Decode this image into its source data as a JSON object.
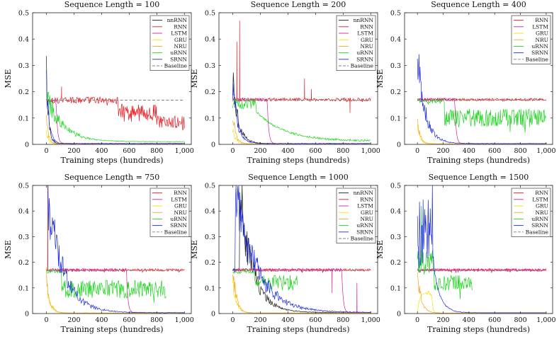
{
  "chart_data": [
    {
      "type": "line",
      "title": "Sequence Length = 100",
      "xlabel": "Training steps (hundreds)",
      "ylabel": "MSE",
      "xlim": [
        -100,
        1050
      ],
      "ylim": [
        0,
        0.5
      ],
      "xticks": [
        0,
        200,
        400,
        600,
        800,
        1000
      ],
      "xtick_labels": [
        "0",
        "200",
        "400",
        "600",
        "800",
        "1,000"
      ],
      "yticks": [
        0,
        0.1,
        0.2,
        0.3,
        0.4,
        0.5
      ],
      "ytick_labels": [
        "0",
        "0.1",
        "0.2",
        "0.3",
        "0.4",
        "0.5"
      ],
      "legend": "top-right",
      "series": [
        {
          "name": "nnRNN",
          "color": "#1a1a1a",
          "kind": "fast",
          "x_end": 1000,
          "x_spike": 0,
          "peak": 0.31,
          "decay": 15,
          "floor": 0.002
        },
        {
          "name": "RNN",
          "color": "#e8191f",
          "kind": "noisy",
          "x_end": 1000,
          "segments": [
            [
              0,
              520,
              0.168,
              0.012
            ],
            [
              520,
              800,
              0.12,
              0.035
            ],
            [
              800,
              1000,
              0.085,
              0.025
            ]
          ],
          "spikes": [
            [
              110,
              0.22
            ]
          ]
        },
        {
          "name": "LSTM",
          "color": "#d6219c",
          "kind": "drop",
          "x_end": 1000,
          "x_drop": 70,
          "level": 0.165,
          "after": 0.002
        },
        {
          "name": "GRU",
          "color": "#f2e400",
          "kind": "fast",
          "x_end": 1000,
          "x_spike": 0,
          "peak": 0.05,
          "decay": 15,
          "floor": 0.001
        },
        {
          "name": "NRU",
          "color": "#f5a623",
          "kind": "fast",
          "x_end": 1000,
          "x_spike": 0,
          "peak": 0.1,
          "decay": 15,
          "floor": 0.001
        },
        {
          "name": "uRNN",
          "color": "#20d420",
          "kind": "slow",
          "x_end": 1000,
          "x_spike": 0,
          "peak": 0.18,
          "decay": 120,
          "floor": 0.009
        },
        {
          "name": "SRNN",
          "color": "#1f2ee0",
          "kind": "fast",
          "x_end": 1000,
          "x_spike": 0,
          "peak": 0.25,
          "decay": 20,
          "floor": 0.002
        },
        {
          "name": "Baseline",
          "color": "#808080",
          "kind": "baseline",
          "x_start": 0,
          "x_end": 1000,
          "level": 0.168
        }
      ]
    },
    {
      "type": "line",
      "title": "Sequence Length = 200",
      "xlabel": "Training steps (hundreds)",
      "ylabel": "MSE",
      "xlim": [
        -100,
        1050
      ],
      "ylim": [
        0,
        0.5
      ],
      "xticks": [
        0,
        200,
        400,
        600,
        800,
        1000
      ],
      "xtick_labels": [
        "0",
        "200",
        "400",
        "600",
        "800",
        "1,000"
      ],
      "yticks": [
        0,
        0.1,
        0.2,
        0.3,
        0.4,
        0.5
      ],
      "ytick_labels": [
        "0",
        "0.1",
        "0.2",
        "0.3",
        "0.4",
        "0.5"
      ],
      "legend": "top-right",
      "series": [
        {
          "name": "nnRNN",
          "color": "#1a1a1a",
          "kind": "fast",
          "x_end": 1000,
          "x_spike": 0,
          "peak": 0.26,
          "decay": 40,
          "floor": 0.002
        },
        {
          "name": "RNN",
          "color": "#e8191f",
          "kind": "noisy",
          "x_end": 1000,
          "segments": [
            [
              0,
              1000,
              0.17,
              0.006
            ]
          ],
          "spikes": [
            [
              30,
              0.39
            ],
            [
              50,
              0.47
            ],
            [
              520,
              0.25
            ],
            [
              570,
              0.21
            ],
            [
              850,
              0.12
            ]
          ]
        },
        {
          "name": "LSTM",
          "color": "#d6219c",
          "kind": "drop",
          "x_end": 1000,
          "x_drop": 250,
          "level": 0.17,
          "after": 0.002
        },
        {
          "name": "GRU",
          "color": "#f2e400",
          "kind": "fast",
          "x_end": 1000,
          "x_spike": 0,
          "peak": 0.06,
          "decay": 20,
          "floor": 0.001
        },
        {
          "name": "NRU",
          "color": "#f5a623",
          "kind": "fast",
          "x_end": 1000,
          "x_spike": 0,
          "peak": 0.12,
          "decay": 20,
          "floor": 0.001
        },
        {
          "name": "uRNN",
          "color": "#20d420",
          "kind": "plateau_decay",
          "x_end": 1000,
          "x_spike": 0,
          "level": 0.155,
          "x_drop": 170,
          "decay": 200,
          "floor": 0.012,
          "noise": 0.02
        },
        {
          "name": "SRNN",
          "color": "#1f2ee0",
          "kind": "fast",
          "x_end": 1000,
          "x_spike": 0,
          "peak": 0.22,
          "decay": 35,
          "floor": 0.002
        },
        {
          "name": "Baseline",
          "color": "#808080",
          "kind": "baseline",
          "x_start": 0,
          "x_end": 1000,
          "level": 0.168
        }
      ]
    },
    {
      "type": "line",
      "title": "Sequence Length = 400",
      "xlabel": "Training steps (hundreds)",
      "ylabel": "MSE",
      "xlim": [
        -100,
        1050
      ],
      "ylim": [
        0,
        0.5
      ],
      "xticks": [
        0,
        200,
        400,
        600,
        800,
        1000
      ],
      "xtick_labels": [
        "0",
        "200",
        "400",
        "600",
        "800",
        "1,000"
      ],
      "yticks": [
        0,
        0.1,
        0.2,
        0.3,
        0.4,
        0.5
      ],
      "ytick_labels": [
        "0",
        "0.1",
        "0.2",
        "0.3",
        "0.4",
        "0.5"
      ],
      "legend": "top-right",
      "series": [
        {
          "name": "RNN",
          "color": "#e8191f",
          "kind": "noisy",
          "x_end": 1000,
          "segments": [
            [
              0,
              1000,
              0.17,
              0.005
            ]
          ],
          "spikes": []
        },
        {
          "name": "LSTM",
          "color": "#d6219c",
          "kind": "drop",
          "x_end": 1000,
          "x_drop": 290,
          "level": 0.17,
          "after": 0.002
        },
        {
          "name": "GRU",
          "color": "#f2e400",
          "kind": "fast",
          "x_end": 1000,
          "x_spike": 0,
          "peak": 0.08,
          "decay": 20,
          "floor": 0.001
        },
        {
          "name": "NRU",
          "color": "#f5a623",
          "kind": "fast",
          "x_end": 1000,
          "x_spike": 0,
          "peak": 0.1,
          "decay": 20,
          "floor": 0.001
        },
        {
          "name": "uRNN",
          "color": "#20d420",
          "kind": "noisy",
          "x_end": 1000,
          "segments": [
            [
              0,
              210,
              0.165,
              0.008
            ],
            [
              210,
              1000,
              0.1,
              0.035
            ]
          ],
          "spikes": []
        },
        {
          "name": "SRNN",
          "color": "#1f2ee0",
          "kind": "fast",
          "x_end": 1000,
          "x_spike": 0,
          "peak": 0.33,
          "decay": 60,
          "floor": 0.002
        },
        {
          "name": "Baseline",
          "color": "#808080",
          "kind": "baseline",
          "x_start": 0,
          "x_end": 1000,
          "level": 0.168
        }
      ]
    },
    {
      "type": "line",
      "title": "Sequence Length = 750",
      "xlabel": "Training steps (hundreds)",
      "ylabel": "MSE",
      "xlim": [
        -100,
        1050
      ],
      "ylim": [
        0,
        0.5
      ],
      "xticks": [
        0,
        200,
        400,
        600,
        800,
        1000
      ],
      "xtick_labels": [
        "0",
        "200",
        "400",
        "600",
        "800",
        "1,000"
      ],
      "yticks": [
        0,
        0.1,
        0.2,
        0.3,
        0.4,
        0.5
      ],
      "ytick_labels": [
        "0",
        "0.1",
        "0.2",
        "0.3",
        "0.4",
        "0.5"
      ],
      "legend": "top-right",
      "series": [
        {
          "name": "RNN",
          "color": "#e8191f",
          "kind": "noisy",
          "x_end": 1000,
          "segments": [
            [
              0,
              1000,
              0.17,
              0.005
            ]
          ],
          "spikes": [
            [
              10,
              0.5
            ]
          ]
        },
        {
          "name": "LSTM",
          "color": "#d6219c",
          "kind": "drop",
          "x_end": 1000,
          "x_drop": 580,
          "level": 0.17,
          "after": 0.002
        },
        {
          "name": "GRU",
          "color": "#f2e400",
          "kind": "fast",
          "x_end": 1000,
          "x_spike": 0,
          "peak": 0.12,
          "decay": 25,
          "floor": 0.001
        },
        {
          "name": "NRU",
          "color": "#f5a623",
          "kind": "fast",
          "x_end": 1000,
          "x_spike": 0,
          "peak": 0.15,
          "decay": 25,
          "floor": 0.001
        },
        {
          "name": "uRNN",
          "color": "#20d420",
          "kind": "noisy",
          "x_end": 870,
          "segments": [
            [
              0,
              110,
              0.165,
              0.008
            ],
            [
              110,
              870,
              0.095,
              0.035
            ]
          ],
          "spikes": []
        },
        {
          "name": "SRNN",
          "color": "#1f2ee0",
          "kind": "fast",
          "x_end": 1000,
          "x_spike": 0,
          "peak": 0.5,
          "decay": 110,
          "floor": 0.002
        },
        {
          "name": "Baseline",
          "color": "#808080",
          "kind": "baseline",
          "x_start": 0,
          "x_end": 1000,
          "level": 0.168
        }
      ]
    },
    {
      "type": "line",
      "title": "Sequence Length = 1000",
      "xlabel": "Training steps (hundreds)",
      "ylabel": "MSE",
      "xlim": [
        -100,
        1050
      ],
      "ylim": [
        0,
        0.5
      ],
      "xticks": [
        0,
        200,
        400,
        600,
        800,
        1000
      ],
      "xtick_labels": [
        "0",
        "200",
        "400",
        "600",
        "800",
        "1,000"
      ],
      "yticks": [
        0,
        0.1,
        0.2,
        0.3,
        0.4,
        0.5
      ],
      "ytick_labels": [
        "0",
        "0.1",
        "0.2",
        "0.3",
        "0.4",
        "0.5"
      ],
      "legend": "top-right",
      "series": [
        {
          "name": "nnRNN",
          "color": "#1a1a1a",
          "kind": "fast",
          "x_end": 1000,
          "x_spike": 50,
          "peak": 0.5,
          "decay": 90,
          "floor": 0.003
        },
        {
          "name": "RNN",
          "color": "#e8191f",
          "kind": "noisy",
          "x_end": 1000,
          "segments": [
            [
              0,
              1000,
              0.17,
              0.005
            ]
          ],
          "spikes": []
        },
        {
          "name": "LSTM",
          "color": "#d6219c",
          "kind": "drop",
          "x_end": 1000,
          "x_drop": 790,
          "level": 0.17,
          "after": 0.002,
          "spikes": [
            [
              720,
              0.08
            ],
            [
              900,
              0.12
            ]
          ]
        },
        {
          "name": "GRU",
          "color": "#f2e400",
          "kind": "fast",
          "x_end": 1000,
          "x_spike": 0,
          "peak": 0.14,
          "decay": 25,
          "floor": 0.001
        },
        {
          "name": "NRU",
          "color": "#f5a623",
          "kind": "fast",
          "x_end": 1000,
          "x_spike": 0,
          "peak": 0.18,
          "decay": 25,
          "floor": 0.001
        },
        {
          "name": "uRNN",
          "color": "#20d420",
          "kind": "noisy",
          "x_end": 470,
          "segments": [
            [
              0,
              160,
              0.165,
              0.008
            ],
            [
              160,
              470,
              0.12,
              0.03
            ]
          ],
          "spikes": []
        },
        {
          "name": "SRNN",
          "color": "#1f2ee0",
          "kind": "fast",
          "x_end": 1000,
          "x_spike": 20,
          "peak": 0.48,
          "decay": 150,
          "floor": 0.003
        },
        {
          "name": "Baseline",
          "color": "#808080",
          "kind": "baseline",
          "x_start": 0,
          "x_end": 1000,
          "level": 0.168
        }
      ]
    },
    {
      "type": "line",
      "title": "Sequence Length = 1500",
      "xlabel": "Training steps (hundreds)",
      "ylabel": "MSE",
      "xlim": [
        -100,
        1050
      ],
      "ylim": [
        0,
        0.5
      ],
      "xticks": [
        0,
        200,
        400,
        600,
        800,
        1000
      ],
      "xtick_labels": [
        "0",
        "200",
        "400",
        "600",
        "800",
        "1,000"
      ],
      "yticks": [
        0,
        0.1,
        0.2,
        0.3,
        0.4,
        0.5
      ],
      "ytick_labels": [
        "0",
        "0.1",
        "0.2",
        "0.3",
        "0.4",
        "0.5"
      ],
      "legend": "top-right",
      "series": [
        {
          "name": "RNN",
          "color": "#e8191f",
          "kind": "noisy",
          "x_end": 1000,
          "segments": [
            [
              0,
              1000,
              0.17,
              0.005
            ]
          ],
          "spikes": []
        },
        {
          "name": "LSTM",
          "color": "#d6219c",
          "kind": "noisy",
          "x_end": 1000,
          "segments": [
            [
              0,
              1000,
              0.17,
              0.005
            ]
          ],
          "spikes": []
        },
        {
          "name": "GRU",
          "color": "#f2e400",
          "kind": "bump",
          "x_end": 1000,
          "x_spike": 70,
          "level": 0.08,
          "x_drop": 110,
          "floor": 0.002
        },
        {
          "name": "NRU",
          "color": "#f5a623",
          "kind": "fast",
          "x_end": 1000,
          "x_spike": 0,
          "peak": 0.15,
          "decay": 30,
          "floor": 0.001
        },
        {
          "name": "uRNN",
          "color": "#20d420",
          "kind": "noisy",
          "x_end": 430,
          "segments": [
            [
              0,
              130,
              0.2,
              0.05
            ],
            [
              130,
              430,
              0.12,
              0.03
            ]
          ],
          "spikes": [
            [
              30,
              0.42
            ]
          ]
        },
        {
          "name": "SRNN",
          "color": "#1f2ee0",
          "kind": "wobble_decay",
          "x_end": 1000,
          "x_spike": 0,
          "peak": 0.5,
          "hold": 130,
          "decay": 150,
          "floor": 0.003
        },
        {
          "name": "Baseline",
          "color": "#808080",
          "kind": "baseline",
          "x_start": 0,
          "x_end": 1000,
          "level": 0.168
        }
      ]
    }
  ]
}
